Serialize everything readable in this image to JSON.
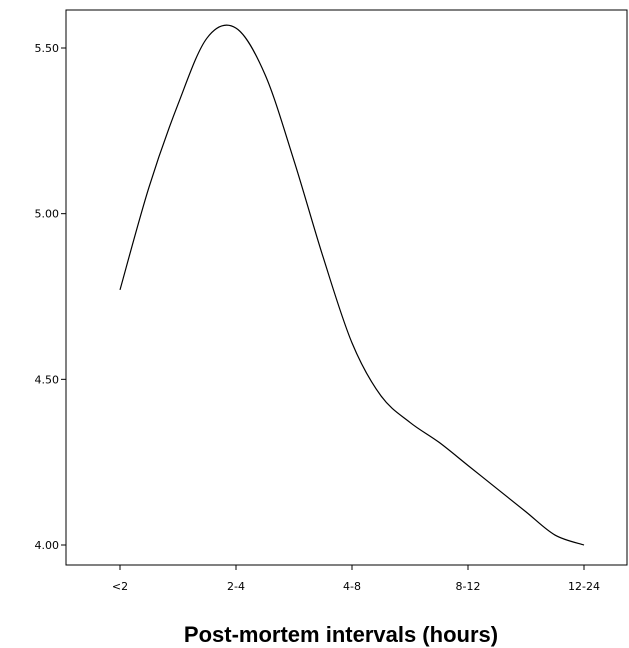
{
  "chart_data": {
    "type": "line",
    "title": "",
    "xlabel": "Post-mortem intervals (hours)",
    "ylabel": "",
    "categories": [
      "<2",
      "2-4",
      "4-8",
      "8-12",
      "12-24"
    ],
    "yticks": [
      "4.00",
      "4.50",
      "5.00",
      "5.50"
    ],
    "ylim": [
      4.0,
      5.5
    ],
    "grid": false,
    "legend": "none",
    "line_color": "#000000",
    "series": [
      {
        "x": [
          0,
          0.25,
          0.5,
          0.75,
          1.0,
          1.25,
          1.5,
          1.75,
          2.0,
          2.25,
          2.5,
          2.75,
          3.0,
          3.25,
          3.5,
          3.75,
          4.0
        ],
        "values": [
          4.77,
          5.08,
          5.33,
          5.53,
          5.56,
          5.42,
          5.16,
          4.87,
          4.61,
          4.45,
          4.37,
          4.31,
          4.24,
          4.17,
          4.1,
          4.03,
          4.0
        ]
      }
    ]
  }
}
